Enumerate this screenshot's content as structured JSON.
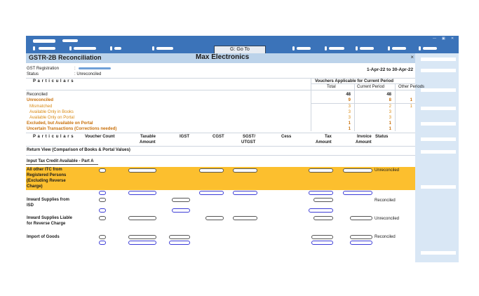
{
  "toolbar": {
    "goto_label": "G: Go To",
    "win_controls": [
      "—",
      "▣",
      "✕"
    ]
  },
  "title": {
    "report": "GSTR-2B Reconciliation",
    "company": "Max Electronics",
    "close": "×"
  },
  "info": {
    "gst_label": "GST Registration",
    "gst_sep": ":",
    "status_label": "Status",
    "status_value": ": Unreconciled",
    "period": "1-Apr-22 to 30-Apr-22"
  },
  "summary": {
    "particulars_header": "P a r t i c u l a r s",
    "vouchers_header": "Vouchers Applicable for Current Period",
    "cols": [
      "Total",
      "Current Period",
      "Other Periods"
    ],
    "rows": [
      {
        "label": "Reconciled",
        "total": "48",
        "current": "48",
        "other": ""
      },
      {
        "label": "Unreconciled",
        "total": "9",
        "current": "8",
        "other": "1"
      },
      {
        "label": "Mismatched",
        "total": "3",
        "current": "2",
        "other": "1"
      },
      {
        "label": "Available Only in Books",
        "total": "3",
        "current": "3",
        "other": ""
      },
      {
        "label": "Available Only on Portal",
        "total": "3",
        "current": "3",
        "other": ""
      },
      {
        "label": "Excluded, but Available on Portal",
        "total": "1",
        "current": "1",
        "other": ""
      },
      {
        "label": "Uncertain Transactions (Corrections needed)",
        "total": "1",
        "current": "1",
        "other": ""
      }
    ]
  },
  "detail": {
    "headers": {
      "particulars": "P a r t i c u l a r s",
      "voucher_count": "Voucher Count",
      "taxable_1": "Taxable",
      "taxable_2": "Amount",
      "igst": "IGST",
      "cgst": "CGST",
      "sgst_1": "SGST/",
      "sgst_2": "UTGST",
      "cess": "Cess",
      "tax_1": "Tax",
      "tax_2": "Amount",
      "invoice_1": "Invoice",
      "invoice_2": "Amount",
      "status": "Status"
    },
    "return_view": "Return View (Comparison of Books & Portal Values)",
    "section": "Input Tax Credit Available - Part A",
    "rows": [
      {
        "l1": "All other ITC from",
        "l2": "Registered Persons",
        "l3": "(Excluding Reverse",
        "l4": "Charge)",
        "status": "Unreconciled"
      },
      {
        "l1": "Inward Supplies from",
        "l2": "ISD",
        "status": "Reconciled"
      },
      {
        "l1": "Inward Supplies Liable",
        "l2": "for Reverse Charge",
        "status": "Unreconciled"
      },
      {
        "l1": "Import of Goods",
        "status": "Reconciled"
      }
    ]
  },
  "colors": {
    "topbar": "#3b73b9",
    "titlebar": "#bcd3ea",
    "highlight": "#fcbf2e",
    "orange": "#d98a12",
    "panel": "#d9e7f5"
  }
}
